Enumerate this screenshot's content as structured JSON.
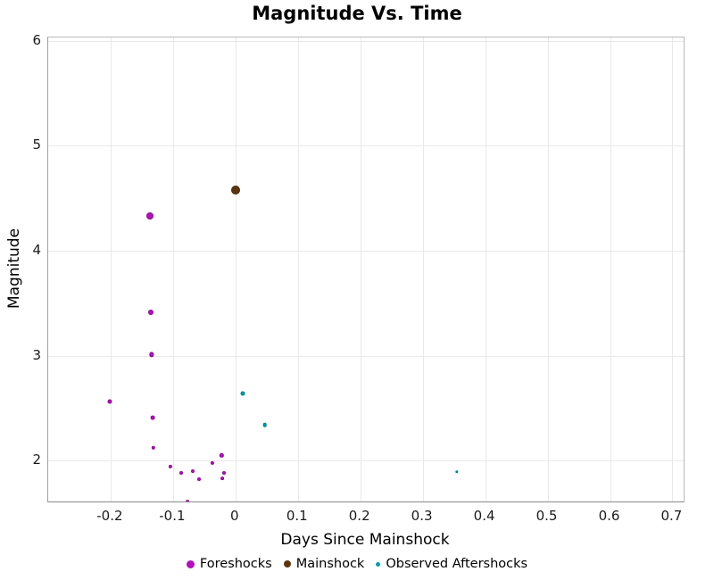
{
  "chart": {
    "title": "Magnitude Vs. Time",
    "xlabel": "Days Since Mainshock",
    "ylabel": "Magnitude"
  },
  "chart_data": {
    "type": "scatter",
    "title": "Magnitude Vs. Time",
    "xlabel": "Days Since Mainshock",
    "ylabel": "Magnitude",
    "xlim": [
      -0.3,
      0.718
    ],
    "ylim": [
      1.61,
      6.03
    ],
    "grid": true,
    "legend_position": "bottom",
    "x_ticks": [
      -0.2,
      -0.1,
      0,
      0.1,
      0.2,
      0.3,
      0.4,
      0.5,
      0.6,
      0.7
    ],
    "x_tick_labels": [
      "-0.2",
      "-0.1",
      "0",
      "0.1",
      "0.2",
      "0.3",
      "0.4",
      "0.5",
      "0.6",
      "0.7"
    ],
    "y_ticks": [
      2,
      3,
      4,
      5,
      6
    ],
    "y_tick_labels": [
      "2",
      "3",
      "4",
      "5",
      "6"
    ],
    "series": [
      {
        "name": "Foreshocks",
        "color": "#B311BB",
        "legend_marker_size": 9,
        "points": [
          {
            "x": -0.201,
            "y": 2.56,
            "size": 5
          },
          {
            "x": -0.137,
            "y": 4.33,
            "size": 8
          },
          {
            "x": -0.135,
            "y": 3.41,
            "size": 6
          },
          {
            "x": -0.134,
            "y": 3.01,
            "size": 5.3
          },
          {
            "x": -0.133,
            "y": 2.41,
            "size": 4.8
          },
          {
            "x": -0.132,
            "y": 2.12,
            "size": 4.4
          },
          {
            "x": -0.104,
            "y": 1.94,
            "size": 4.2
          },
          {
            "x": -0.087,
            "y": 1.88,
            "size": 4
          },
          {
            "x": -0.077,
            "y": 1.61,
            "size": 3.8
          },
          {
            "x": -0.068,
            "y": 1.9,
            "size": 4
          },
          {
            "x": -0.059,
            "y": 1.82,
            "size": 4
          },
          {
            "x": -0.037,
            "y": 1.98,
            "size": 4.2
          },
          {
            "x": -0.022,
            "y": 2.05,
            "size": 4.4
          },
          {
            "x": -0.021,
            "y": 1.83,
            "size": 3.8
          },
          {
            "x": -0.019,
            "y": 1.88,
            "size": 4
          }
        ]
      },
      {
        "name": "Mainshock",
        "color": "#5C350F",
        "legend_marker_size": 8,
        "points": [
          {
            "x": 0.0,
            "y": 4.58,
            "size": 10
          }
        ]
      },
      {
        "name": "Observed Aftershocks",
        "color": "#00A0A8",
        "legend_marker_size": 5,
        "points": [
          {
            "x": 0.011,
            "y": 2.64,
            "size": 5
          },
          {
            "x": 0.047,
            "y": 2.34,
            "size": 4.6
          },
          {
            "x": 0.355,
            "y": 1.89,
            "size": 3.4
          }
        ]
      }
    ]
  }
}
